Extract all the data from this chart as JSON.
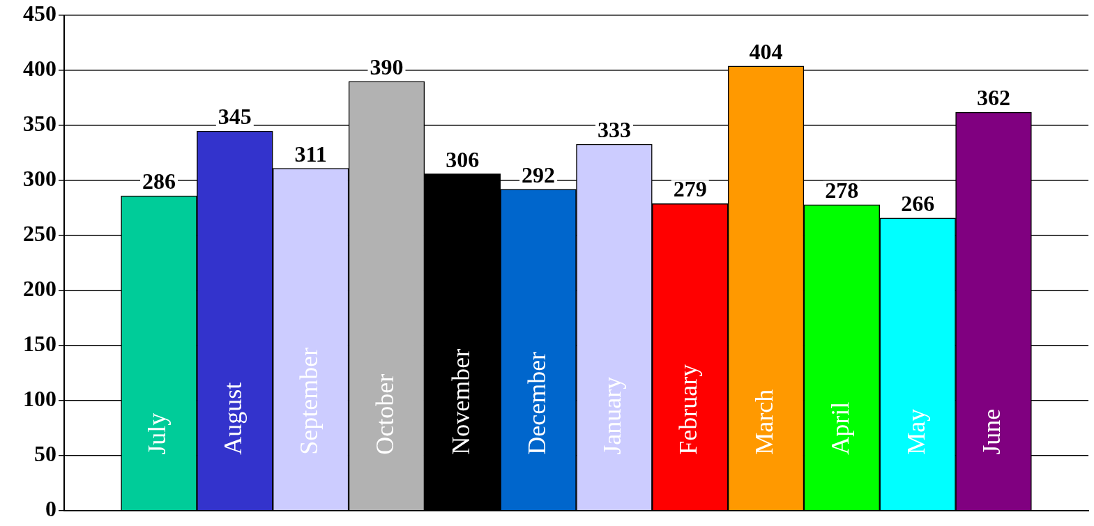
{
  "chart_data": {
    "type": "bar",
    "categories": [
      "July",
      "August",
      "September",
      "October",
      "November",
      "December",
      "January",
      "February",
      "March",
      "April",
      "May",
      "June"
    ],
    "values": [
      286,
      345,
      311,
      390,
      306,
      292,
      333,
      279,
      404,
      278,
      266,
      362
    ],
    "colors": [
      "#00cc99",
      "#3333cc",
      "#ccccff",
      "#b2b2b2",
      "#000000",
      "#0066cc",
      "#ccccff",
      "#ff0000",
      "#ff9900",
      "#00ff00",
      "#00ffff",
      "#800080"
    ],
    "ylim": [
      0,
      450
    ],
    "yticks": [
      0,
      50,
      100,
      150,
      200,
      250,
      300,
      350,
      400,
      450
    ],
    "grid": "y",
    "data_labels": true,
    "legend": false
  }
}
